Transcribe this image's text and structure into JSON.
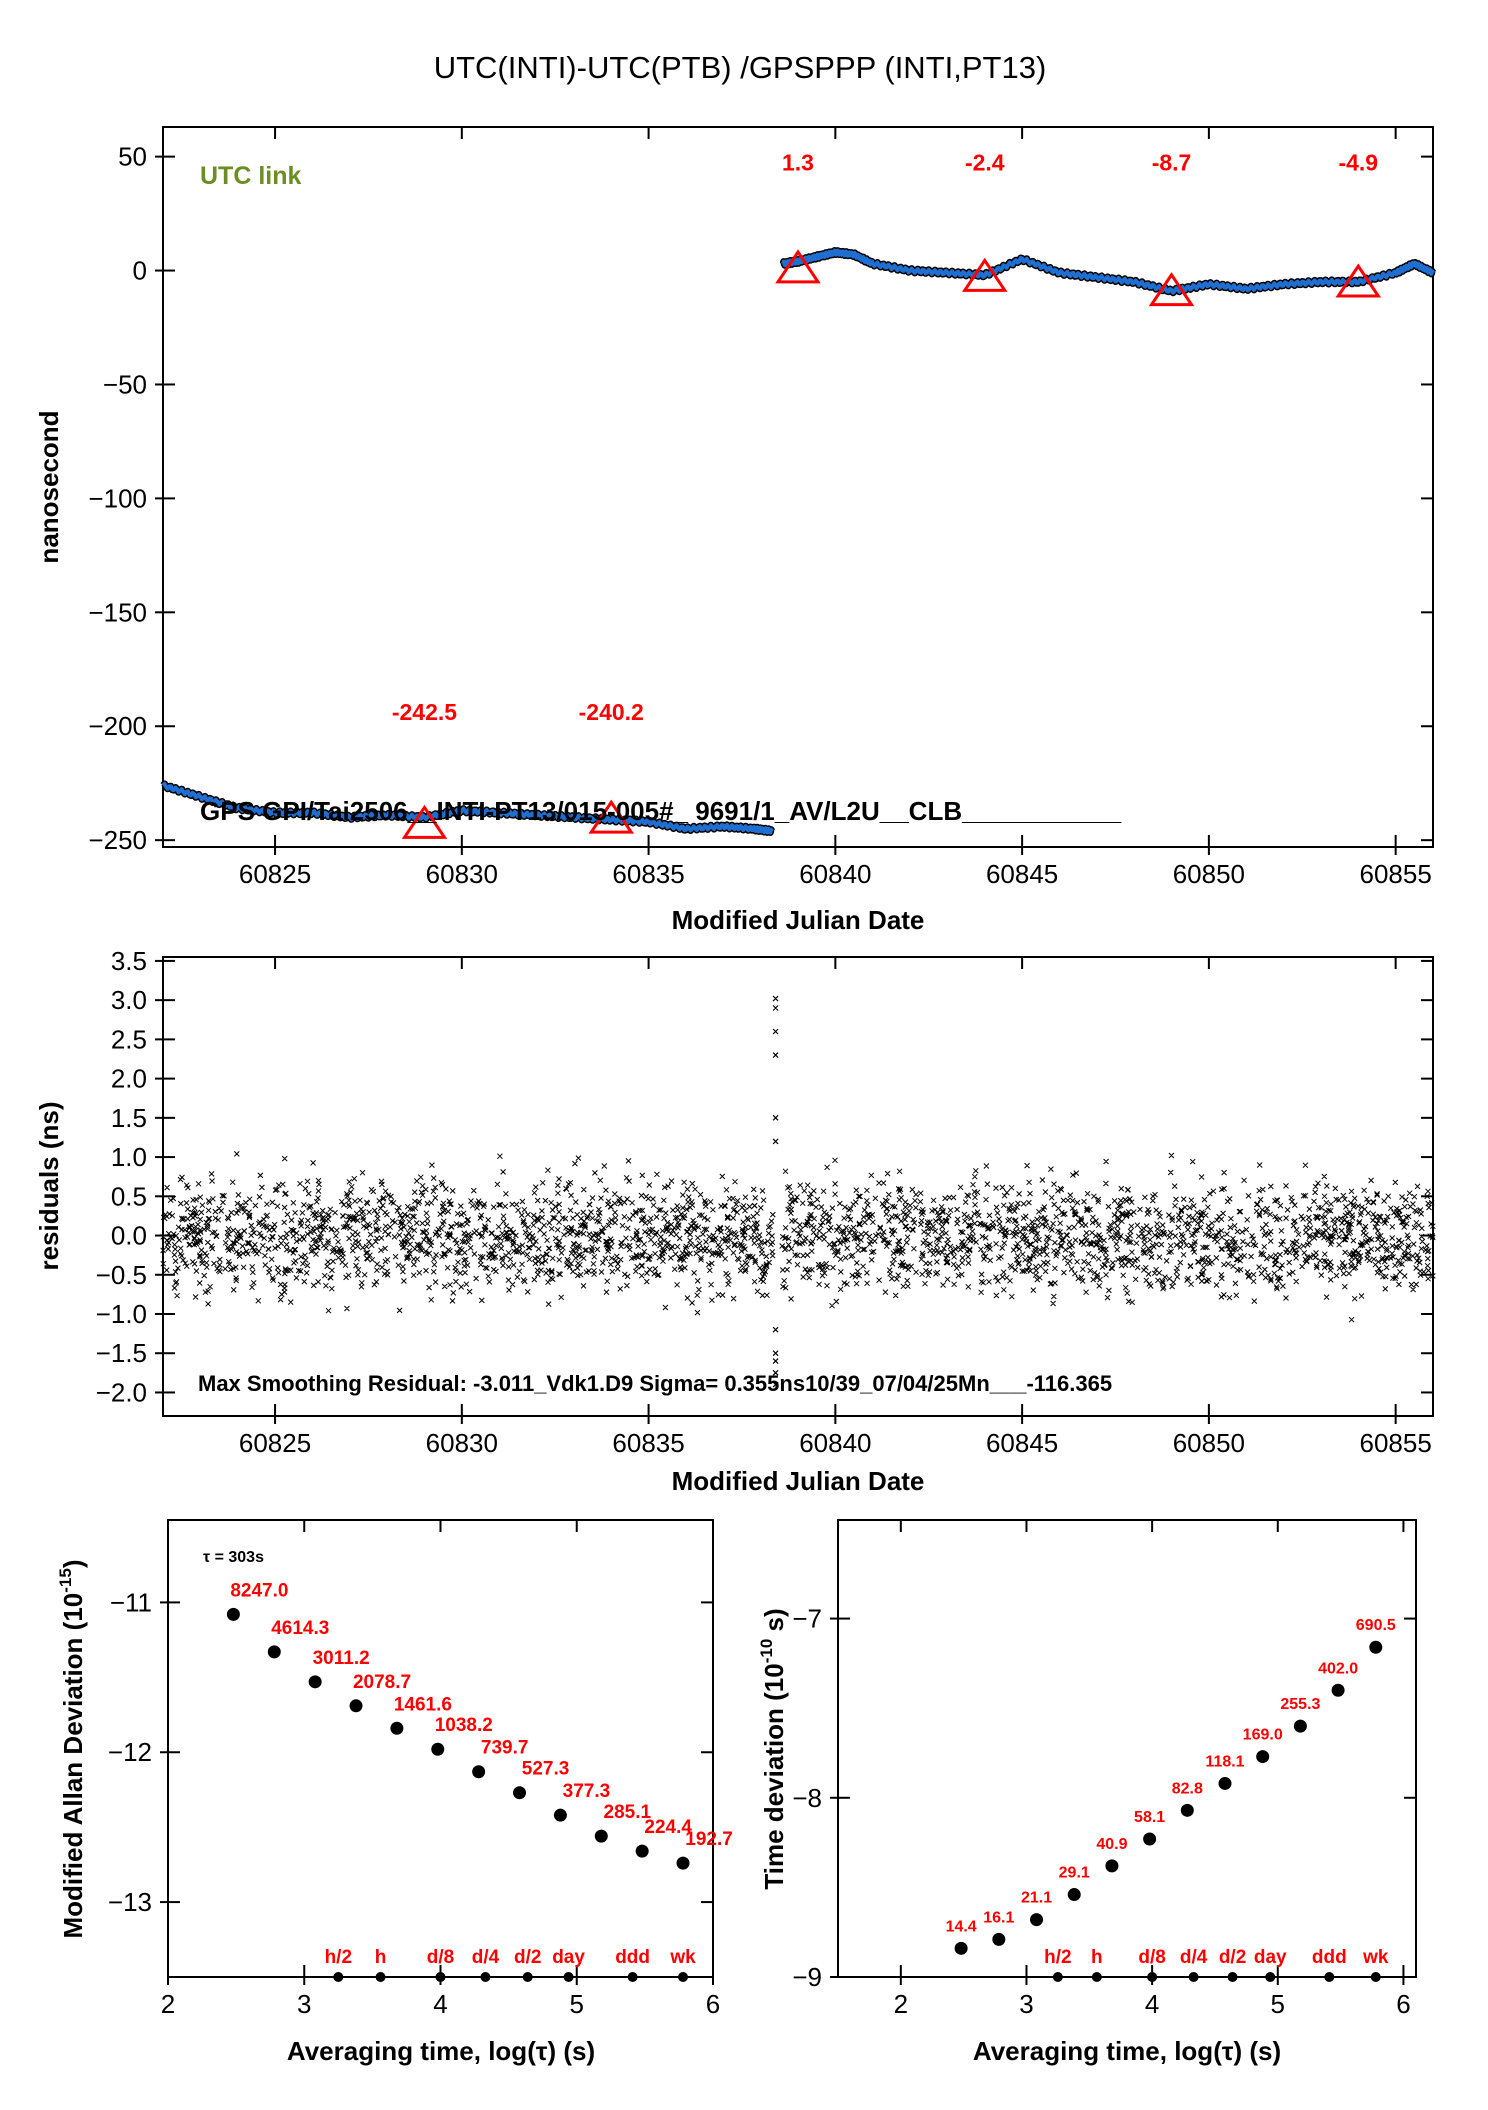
{
  "title": "UTC(INTI)-UTC(PTB)  /GPSPPP  (INTI,PT13)",
  "colors": {
    "series": "#1f6fd1",
    "marker": "#ff0000",
    "label": "#ff0000",
    "link": "#6b8e23"
  },
  "chart_data": [
    {
      "type": "line",
      "title": "UTC(INTI)-UTC(PTB)  /GPSPPP  (INTI,PT13)",
      "xlabel": "Modified Julian Date",
      "ylabel": "nanosecond",
      "xlim": [
        60822,
        60856
      ],
      "ylim": [
        -253,
        63
      ],
      "xticks": [
        60825,
        60830,
        60835,
        60840,
        60845,
        60850,
        60855
      ],
      "yticks": [
        50,
        0,
        -50,
        -100,
        -150,
        -200,
        -250
      ],
      "legend": "UTC link",
      "info": "GPS GPI/Tai2506__INTI-PT13/015-005#_  9691/1_AV/L2U__CLB___________",
      "series": [
        {
          "x": [
            60822.0,
            60823.0,
            60824.0,
            60825.0,
            60826.0,
            60827.0,
            60828.0,
            60829.0,
            60830.0,
            60831.0,
            60832.0,
            60833.0,
            60834.0,
            60835.0,
            60836.0,
            60837.0,
            60837.8,
            60838.3
          ],
          "y": [
            -226,
            -231,
            -236,
            -238,
            -238,
            -240,
            -239,
            -240,
            -237,
            -238,
            -239,
            -240,
            -241,
            -242,
            -245,
            -244,
            -245,
            -246
          ]
        },
        {
          "x": [
            60838.6,
            60839.0,
            60839.5,
            60840.0,
            60840.5,
            60841.0,
            60842.0,
            60843.0,
            60844.0,
            60845.0,
            60846.0,
            60847.0,
            60848.0,
            60849.0,
            60850.0,
            60851.0,
            60852.0,
            60853.0,
            60854.0,
            60855.0,
            60855.5,
            60856.0
          ],
          "y": [
            3,
            4,
            6,
            8,
            7,
            3,
            0,
            -1,
            -2,
            5,
            -1,
            -3,
            -5,
            -9,
            -6,
            -8,
            -6,
            -5,
            -5,
            -1,
            3,
            -1
          ]
        }
      ],
      "markers": [
        {
          "x": 60829,
          "y": -242.5,
          "label": "-242.5"
        },
        {
          "x": 60834,
          "y": -240.2,
          "label": "-240.2"
        },
        {
          "x": 60839,
          "y": 1.3,
          "label": "1.3"
        },
        {
          "x": 60844,
          "y": -2.4,
          "label": "-2.4"
        },
        {
          "x": 60849,
          "y": -8.7,
          "label": "-8.7"
        },
        {
          "x": 60854,
          "y": -4.9,
          "label": "-4.9"
        }
      ]
    },
    {
      "type": "scatter",
      "xlabel": "Modified Julian Date",
      "ylabel": "residuals (ns)",
      "xlim": [
        60822,
        60856
      ],
      "ylim": [
        -2.3,
        3.55
      ],
      "xticks": [
        60825,
        60830,
        60835,
        60840,
        60845,
        60850,
        60855
      ],
      "yticks": [
        3.5,
        3.0,
        2.5,
        2.0,
        1.5,
        1.0,
        0.5,
        0.0,
        -0.5,
        -1.0,
        -1.5,
        -2.0
      ],
      "ytick_labels": [
        "3.5",
        "3.0",
        "2.5",
        "2.0",
        "1.5",
        "1.0",
        "0.5",
        "0.0",
        "−0.5",
        "−1.0",
        "−1.5",
        "−2.0"
      ],
      "annotation": "Max Smoothing Residual: -3.011_Vdk1.D9  Sigma= 0.355ns10/39_07/04/25Mn___-116.365",
      "sigma": 0.355,
      "max_residual": -3.011,
      "outliers": {
        "x": 60838.4,
        "y": [
          3.02,
          2.9,
          2.6,
          2.3,
          1.5,
          1.2,
          -1.2,
          -1.5,
          -1.6,
          -1.75,
          -1.9
        ]
      }
    },
    {
      "type": "scatter",
      "xlabel": "Averaging time, log(τ) (s)",
      "ylabel": "Modified Allan Deviation (10",
      "ylabel_exp": "-15",
      "ylabel_end": ")",
      "xlim": [
        2,
        6
      ],
      "ylim": [
        -13.5,
        -10.45
      ],
      "xticks": [
        2,
        3,
        4,
        5,
        6
      ],
      "yticks": [
        -11,
        -12,
        -13
      ],
      "tau_note": "τ = 303s",
      "x": [
        2.48,
        2.78,
        3.08,
        3.38,
        3.68,
        3.98,
        4.28,
        4.58,
        4.88,
        5.18,
        5.48,
        5.78
      ],
      "y": [
        -11.08,
        -11.33,
        -11.53,
        -11.69,
        -11.84,
        -11.98,
        -12.13,
        -12.27,
        -12.42,
        -12.56,
        -12.66,
        -12.74
      ],
      "labels": [
        "8247.0",
        "4614.3",
        "3011.2",
        "2078.7",
        "1461.6",
        "1038.2",
        "739.7",
        "527.3",
        "377.3",
        "285.1",
        "224.4",
        "192.7"
      ],
      "time_marks": [
        {
          "x": 3.25,
          "label": "h/2"
        },
        {
          "x": 3.56,
          "label": "h"
        },
        {
          "x": 4.0,
          "label": "d/8"
        },
        {
          "x": 4.33,
          "label": "d/4"
        },
        {
          "x": 4.64,
          "label": "d/2"
        },
        {
          "x": 4.94,
          "label": "day"
        },
        {
          "x": 5.41,
          "label": "ddd"
        },
        {
          "x": 5.78,
          "label": "wk"
        }
      ]
    },
    {
      "type": "scatter",
      "xlabel": "Averaging time, log(τ) (s)",
      "ylabel": "Time deviation (10",
      "ylabel_exp": "-10",
      "ylabel_end": " s)",
      "xlim": [
        1.5,
        6.1
      ],
      "ylim": [
        -9.0,
        -6.45
      ],
      "xticks": [
        2,
        3,
        4,
        5,
        6
      ],
      "yticks": [
        -7,
        -8,
        -9
      ],
      "x": [
        2.48,
        2.78,
        3.08,
        3.38,
        3.68,
        3.98,
        4.28,
        4.58,
        4.88,
        5.18,
        5.48,
        5.78
      ],
      "y": [
        -8.84,
        -8.79,
        -8.68,
        -8.54,
        -8.38,
        -8.23,
        -8.07,
        -7.92,
        -7.77,
        -7.6,
        -7.4,
        -7.16
      ],
      "labels": [
        "14.4",
        "16.1",
        "21.1",
        "29.1",
        "40.9",
        "58.1",
        "82.8",
        "118.1",
        "169.0",
        "255.3",
        "402.0",
        "690.5"
      ],
      "time_marks": [
        {
          "x": 3.25,
          "label": "h/2"
        },
        {
          "x": 3.56,
          "label": "h"
        },
        {
          "x": 4.0,
          "label": "d/8"
        },
        {
          "x": 4.33,
          "label": "d/4"
        },
        {
          "x": 4.64,
          "label": "d/2"
        },
        {
          "x": 4.94,
          "label": "day"
        },
        {
          "x": 5.41,
          "label": "ddd"
        },
        {
          "x": 5.78,
          "label": "wk"
        }
      ]
    }
  ]
}
